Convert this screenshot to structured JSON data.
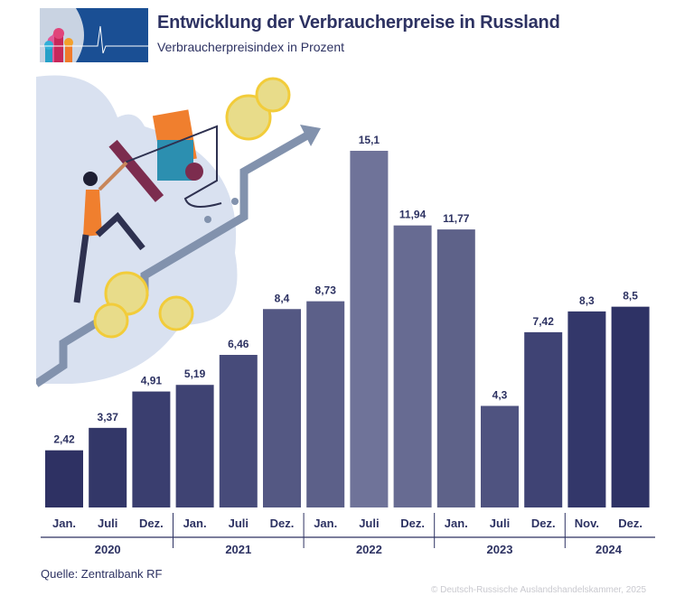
{
  "header": {
    "title": "Entwicklung der Verbraucherpreise in Russland",
    "subtitle": "Verbraucherpreisindex in Prozent"
  },
  "chart_data": {
    "type": "bar",
    "title": "Entwicklung der Verbraucherpreise in Russland",
    "subtitle": "Verbraucherpreisindex in Prozent",
    "ylabel": "",
    "xlabel": "",
    "ylim": [
      0,
      15.1
    ],
    "grid": false,
    "categories": [
      "Jan.",
      "Juli",
      "Dez.",
      "Jan.",
      "Juli",
      "Dez.",
      "Jan.",
      "Juli",
      "Dez.",
      "Jan.",
      "Juli",
      "Dez.",
      "Nov.",
      "Dez."
    ],
    "groups": [
      {
        "label": "2020",
        "count": 3
      },
      {
        "label": "2021",
        "count": 3
      },
      {
        "label": "2022",
        "count": 3
      },
      {
        "label": "2023",
        "count": 3
      },
      {
        "label": "2024",
        "count": 2
      }
    ],
    "values": [
      2.42,
      3.37,
      4.91,
      5.19,
      6.46,
      8.4,
      8.73,
      15.1,
      11.94,
      11.77,
      4.3,
      7.42,
      8.3,
      8.5
    ],
    "value_labels": [
      "2,42",
      "3,37",
      "4,91",
      "5,19",
      "6,46",
      "8,4",
      "8,73",
      "15,1",
      "11,94",
      "11,77",
      "4,3",
      "7,42",
      "8,3",
      "8,5"
    ],
    "colors": [
      "#2e3163",
      "#333768",
      "#3a3e6f",
      "#3f4373",
      "#474b7a",
      "#545883",
      "#5c6089",
      "#6f7399",
      "#676b92",
      "#5e6289",
      "#4f5380",
      "#3f4374",
      "#33376a",
      "#2e3265"
    ]
  },
  "footer": {
    "source": "Quelle: Zentralbank RF",
    "copyright": "© Deutsch-Russische Auslandshandelskammer, 2025"
  },
  "colors": {
    "text": "#2d3262",
    "logo_blue": "#1a4f94",
    "coin": "#e8dc8a"
  }
}
